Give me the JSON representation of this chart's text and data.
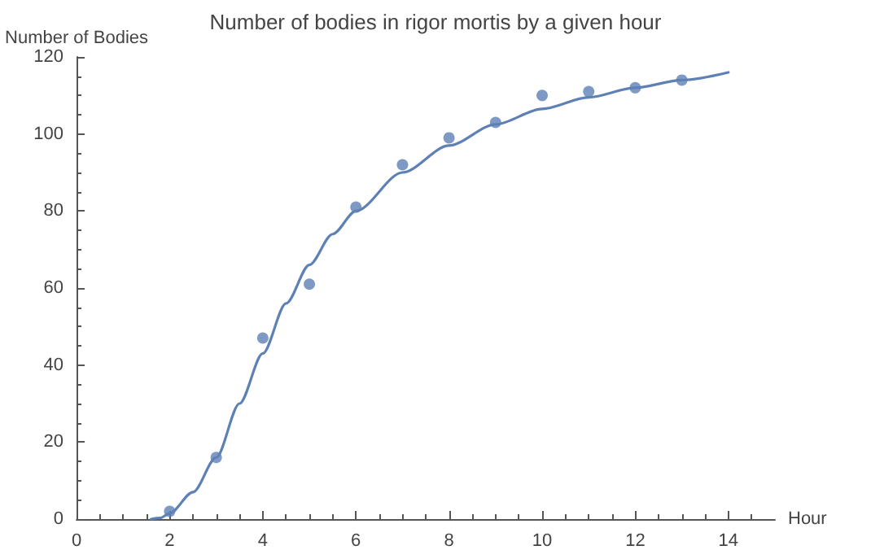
{
  "chart_data": {
    "type": "scatter",
    "title": "Number of bodies in rigor mortis by a given hour",
    "xlabel": "Hour",
    "ylabel": "Number of Bodies",
    "xlim": [
      0,
      15
    ],
    "xticks": [
      0,
      2,
      4,
      6,
      8,
      10,
      12,
      14
    ],
    "ylim": [
      0,
      120
    ],
    "yticks": [
      0,
      20,
      40,
      60,
      80,
      100,
      120
    ],
    "grid": false,
    "series": [
      {
        "color": "#5e81b5",
        "marker": "circle",
        "x": [
          2,
          3,
          4,
          5,
          6,
          7,
          8,
          9,
          10,
          11,
          12,
          13
        ],
        "values": [
          2,
          16,
          47,
          61,
          81,
          92,
          99,
          103,
          110,
          111,
          112,
          114
        ]
      },
      {
        "type": "line",
        "color": "#5e81b5",
        "marker": "none",
        "line_style": "solid",
        "x": [
          1.6,
          1.8,
          2,
          2.5,
          3,
          3.5,
          4,
          4.5,
          5,
          5.5,
          6,
          7,
          8,
          9,
          10,
          11,
          12,
          13,
          14
        ],
        "values": [
          0,
          0.3,
          1.5,
          7,
          16,
          30,
          43,
          56,
          66,
          74,
          80,
          90,
          97,
          102.5,
          106.5,
          109.5,
          112,
          114,
          116
        ]
      }
    ]
  }
}
